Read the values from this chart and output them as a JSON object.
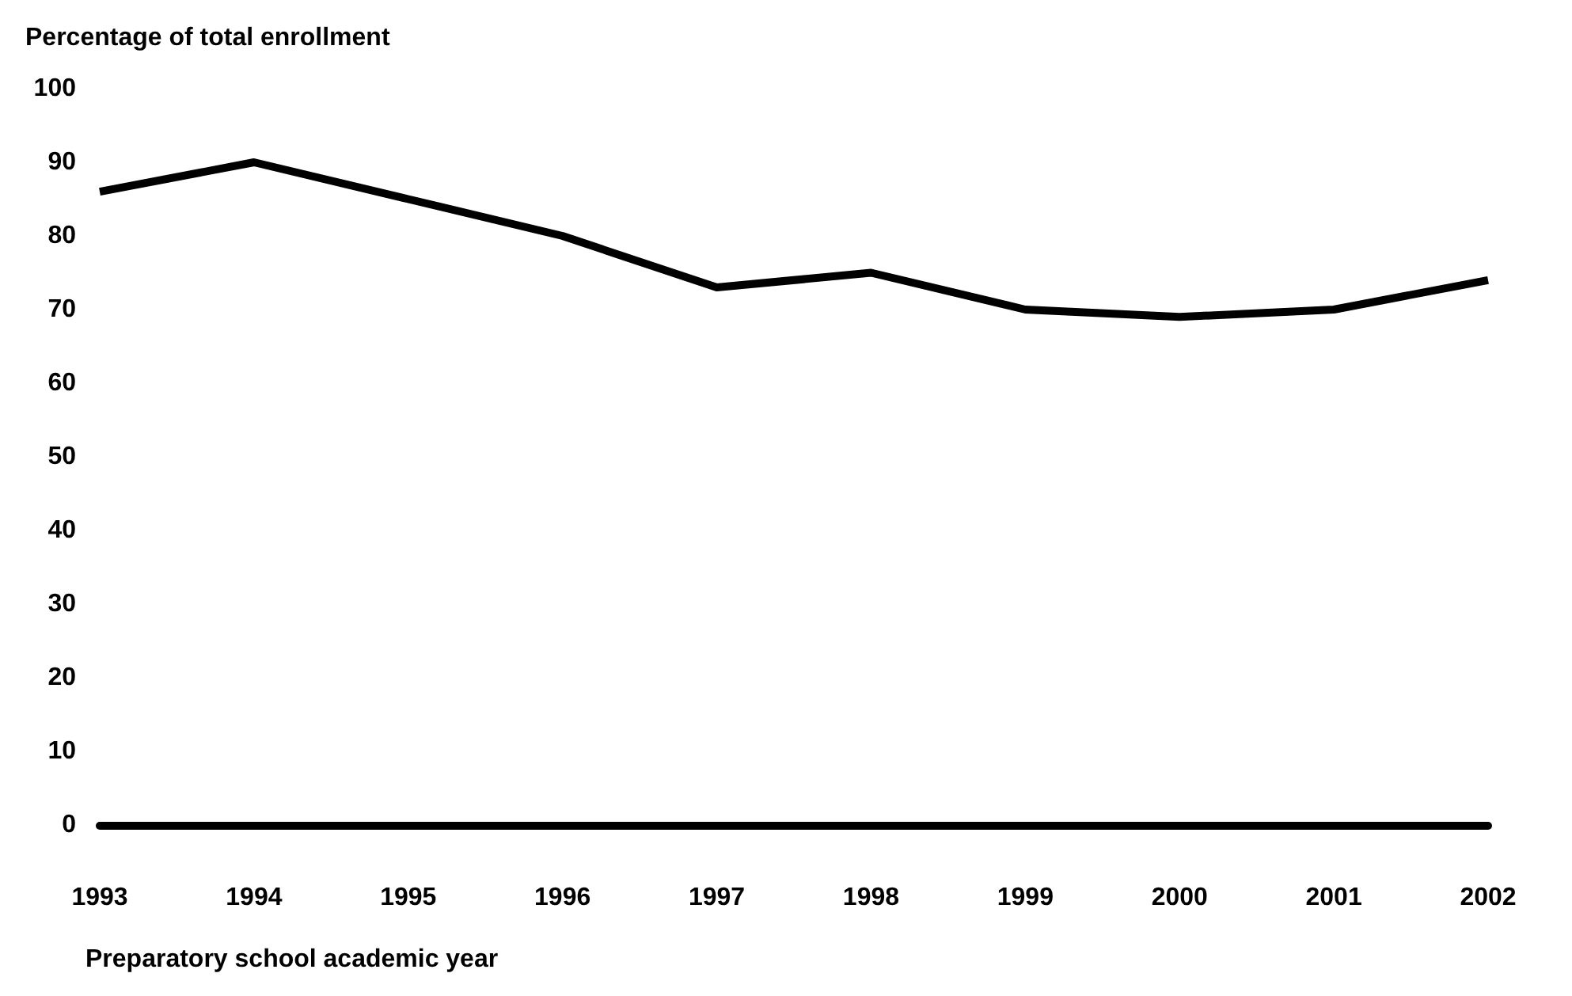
{
  "chart_data": {
    "type": "line",
    "ylabel": "Percentage of total enrollment",
    "xlabel": "Preparatory school academic year",
    "categories": [
      "1993",
      "1994",
      "1995",
      "1996",
      "1997",
      "1998",
      "1999",
      "2000",
      "2001",
      "2002"
    ],
    "series": [
      {
        "color": "#000000",
        "values": [
          86,
          90,
          85,
          80,
          73,
          75,
          70,
          69,
          70,
          74
        ]
      }
    ],
    "ylim": [
      0,
      100
    ],
    "yticks": [
      0,
      10,
      20,
      30,
      40,
      50,
      60,
      70,
      80,
      90,
      100
    ],
    "grid": false,
    "marker": "none",
    "line_style": "solid"
  }
}
